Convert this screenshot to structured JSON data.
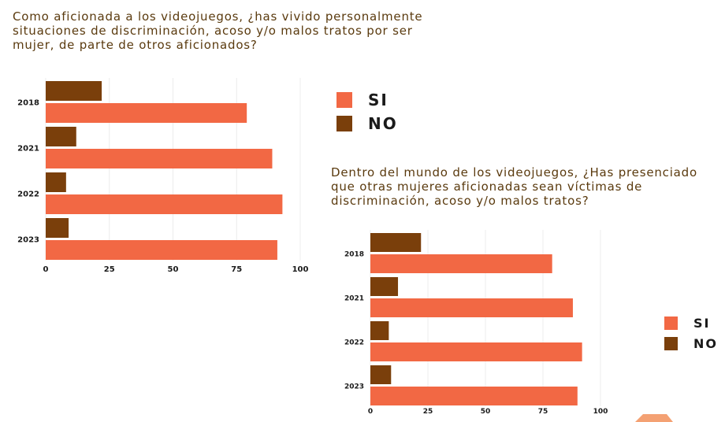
{
  "chart_data": [
    {
      "type": "bar",
      "orientation": "horizontal",
      "title": "Como aficionada a los videojuegos, ¿has vivido personalmente situaciones de discriminación, acoso y/o malos tratos por ser mujer, de parte de otros aficionados?",
      "categories": [
        "2018",
        "2021",
        "2022",
        "2023"
      ],
      "series": [
        {
          "name": "NO",
          "color": "#7a3f0b",
          "values": [
            22,
            12,
            8,
            9
          ]
        },
        {
          "name": "SI",
          "color": "#f26844",
          "values": [
            79,
            89,
            93,
            91
          ]
        }
      ],
      "xlim": [
        0,
        100
      ],
      "xticks": [
        "0",
        "25",
        "50",
        "75",
        "100"
      ],
      "grid": "vertical",
      "legend_position": "right"
    },
    {
      "type": "bar",
      "orientation": "horizontal",
      "title": "Dentro del mundo de los videojuegos, ¿Has presenciado que otras mujeres aficionadas sean víctimas de discriminación, acoso y/o malos tratos?",
      "categories": [
        "2018",
        "2021",
        "2022",
        "2023"
      ],
      "series": [
        {
          "name": "NO",
          "color": "#7a3f0b",
          "values": [
            22,
            12,
            8,
            9
          ]
        },
        {
          "name": "SI",
          "color": "#f26844",
          "values": [
            79,
            88,
            92,
            90
          ]
        }
      ],
      "xlim": [
        0,
        100
      ],
      "xticks": [
        "0",
        "25",
        "50",
        "75",
        "100"
      ],
      "grid": "vertical",
      "legend_position": "right"
    }
  ],
  "legend": {
    "items": [
      {
        "label": "SI",
        "color": "#f26844"
      },
      {
        "label": "NO",
        "color": "#7a3f0b"
      }
    ]
  },
  "colors": {
    "text": "#5a3a0e",
    "si": "#f26844",
    "no": "#7a3f0b",
    "grid": "#ececec",
    "decoration": "#f4a173"
  }
}
